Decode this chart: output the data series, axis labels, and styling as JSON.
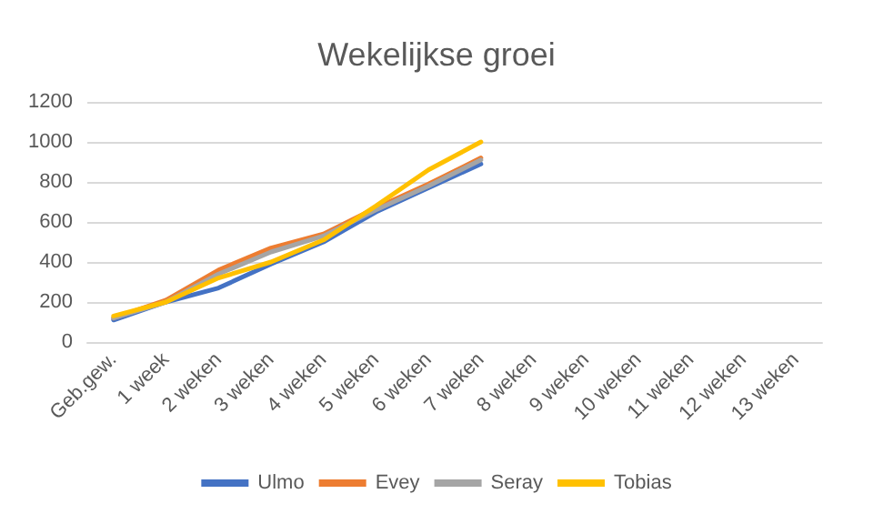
{
  "chart_data": {
    "type": "line",
    "title": "Wekelijkse groei",
    "categories": [
      "Geb.gew.",
      "1 week",
      "2 weken",
      "3 weken",
      "4 weken",
      "5 weken",
      "6 weken",
      "7 weken",
      "8 weken",
      "9 weken",
      "10 weken",
      "11 weken",
      "12 weken",
      "13 weken"
    ],
    "series": [
      {
        "name": "Ulmo",
        "color": "#4472c4",
        "values": [
          110,
          200,
          270,
          390,
          500,
          650,
          770,
          890,
          null,
          null,
          null,
          null,
          null,
          null
        ]
      },
      {
        "name": "Evey",
        "color": "#ed7d31",
        "values": [
          120,
          210,
          360,
          470,
          540,
          670,
          790,
          920,
          null,
          null,
          null,
          null,
          null,
          null
        ]
      },
      {
        "name": "Seray",
        "color": "#a5a5a5",
        "values": [
          120,
          200,
          340,
          450,
          530,
          660,
          780,
          910,
          null,
          null,
          null,
          null,
          null,
          null
        ]
      },
      {
        "name": "Tobias",
        "color": "#ffc000",
        "values": [
          130,
          200,
          320,
          400,
          510,
          680,
          860,
          1000,
          null,
          null,
          null,
          null,
          null,
          null
        ]
      }
    ],
    "ylim": [
      0,
      1200
    ],
    "yticks": [
      0,
      200,
      400,
      600,
      800,
      1000,
      1200
    ],
    "grid": "y",
    "legend": "bottom",
    "marker": "none",
    "line_style": "solid"
  }
}
